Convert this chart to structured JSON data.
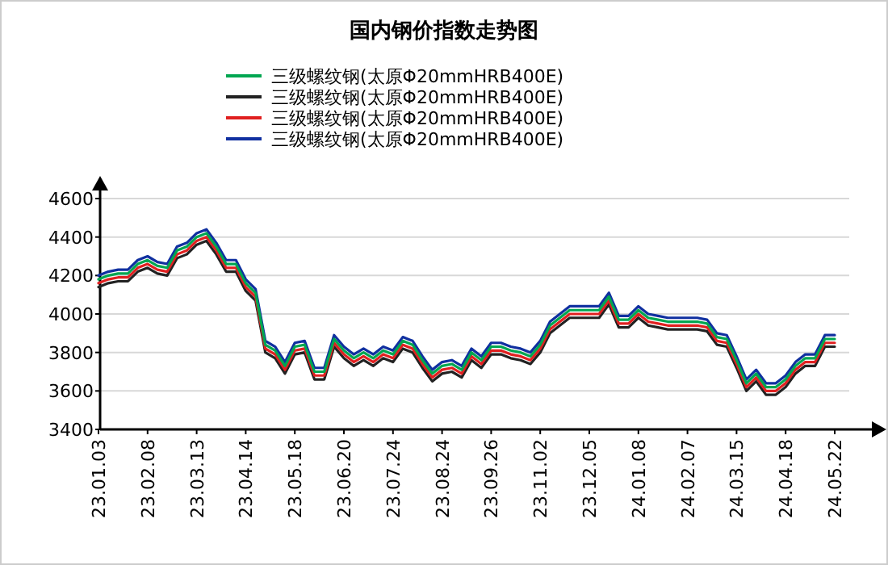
{
  "chart_data": {
    "type": "line",
    "title": "国内钢价指数走势图",
    "categories": [
      "23.01.03",
      null,
      null,
      null,
      null,
      "23.02.08",
      null,
      null,
      null,
      null,
      "23.03.13",
      null,
      null,
      null,
      null,
      "23.04.14",
      null,
      null,
      null,
      null,
      "23.05.18",
      null,
      null,
      null,
      null,
      "23.06.20",
      null,
      null,
      null,
      null,
      "23.07.24",
      null,
      null,
      null,
      null,
      "23.08.24",
      null,
      null,
      null,
      null,
      "23.09.26",
      null,
      null,
      null,
      null,
      "23.11.02",
      null,
      null,
      null,
      null,
      "23.12.05",
      null,
      null,
      null,
      null,
      "24.01.08",
      null,
      null,
      null,
      null,
      "24.02.07",
      null,
      null,
      null,
      null,
      "24.03.15",
      null,
      null,
      null,
      null,
      "24.04.18",
      null,
      null,
      null,
      null,
      "24.05.22"
    ],
    "series": [
      {
        "name": "三级螺纹钢(太原Φ20mmHRB400E)",
        "color": "#00a651",
        "values": [
          4180,
          4200,
          4210,
          4210,
          4260,
          4280,
          4250,
          4240,
          4330,
          4350,
          4400,
          4420,
          4350,
          4260,
          4260,
          4160,
          4110,
          3840,
          3810,
          3730,
          3830,
          3840,
          3700,
          3700,
          3870,
          3810,
          3770,
          3800,
          3770,
          3810,
          3790,
          3860,
          3840,
          3760,
          3690,
          3730,
          3740,
          3710,
          3800,
          3760,
          3830,
          3830,
          3810,
          3800,
          3780,
          3840,
          3940,
          3980,
          4020,
          4020,
          4020,
          4020,
          4090,
          3970,
          3970,
          4020,
          3980,
          3970,
          3960,
          3960,
          3960,
          3960,
          3950,
          3880,
          3870,
          3760,
          3640,
          3690,
          3620,
          3620,
          3660,
          3730,
          3770,
          3770,
          3870,
          3870
        ]
      },
      {
        "name": "三级螺纹钢(太原Φ20mmHRB400E)",
        "color": "#222222",
        "values": [
          4140,
          4160,
          4170,
          4170,
          4220,
          4240,
          4210,
          4200,
          4290,
          4310,
          4360,
          4380,
          4310,
          4220,
          4220,
          4120,
          4070,
          3800,
          3770,
          3690,
          3790,
          3800,
          3660,
          3660,
          3830,
          3770,
          3730,
          3760,
          3730,
          3770,
          3750,
          3820,
          3800,
          3720,
          3650,
          3690,
          3700,
          3670,
          3760,
          3720,
          3790,
          3790,
          3770,
          3760,
          3740,
          3800,
          3900,
          3940,
          3980,
          3980,
          3980,
          3980,
          4050,
          3930,
          3930,
          3980,
          3940,
          3930,
          3920,
          3920,
          3920,
          3920,
          3910,
          3840,
          3830,
          3720,
          3600,
          3650,
          3580,
          3580,
          3620,
          3690,
          3730,
          3730,
          3830,
          3830
        ]
      },
      {
        "name": "三级螺纹钢(太原Φ20mmHRB400E)",
        "color": "#e02020",
        "values": [
          4160,
          4180,
          4190,
          4190,
          4240,
          4260,
          4230,
          4220,
          4310,
          4330,
          4380,
          4400,
          4330,
          4240,
          4240,
          4140,
          4090,
          3820,
          3790,
          3710,
          3810,
          3820,
          3680,
          3680,
          3850,
          3790,
          3750,
          3780,
          3750,
          3790,
          3770,
          3840,
          3820,
          3740,
          3670,
          3710,
          3720,
          3690,
          3780,
          3740,
          3810,
          3810,
          3790,
          3780,
          3760,
          3820,
          3920,
          3960,
          4000,
          4000,
          4000,
          4000,
          4070,
          3950,
          3950,
          4000,
          3960,
          3950,
          3940,
          3940,
          3940,
          3940,
          3930,
          3860,
          3850,
          3740,
          3620,
          3670,
          3600,
          3600,
          3640,
          3710,
          3750,
          3750,
          3850,
          3850
        ]
      },
      {
        "name": "三级螺纹钢(太原Φ20mmHRB400E)",
        "color": "#1030a0",
        "values": [
          4200,
          4220,
          4230,
          4230,
          4280,
          4300,
          4270,
          4260,
          4350,
          4370,
          4420,
          4440,
          4370,
          4280,
          4280,
          4180,
          4130,
          3860,
          3830,
          3750,
          3850,
          3860,
          3720,
          3720,
          3890,
          3830,
          3790,
          3820,
          3790,
          3830,
          3810,
          3880,
          3860,
          3780,
          3710,
          3750,
          3760,
          3730,
          3820,
          3780,
          3850,
          3850,
          3830,
          3820,
          3800,
          3860,
          3960,
          4000,
          4040,
          4040,
          4040,
          4040,
          4110,
          3990,
          3990,
          4040,
          4000,
          3990,
          3980,
          3980,
          3980,
          3980,
          3970,
          3900,
          3890,
          3780,
          3660,
          3710,
          3640,
          3640,
          3680,
          3750,
          3790,
          3790,
          3890,
          3890
        ]
      }
    ],
    "ylim": [
      3400,
      4600
    ],
    "yticks": [
      3400,
      3600,
      3800,
      4000,
      4200,
      4400,
      4600
    ],
    "grid": "y",
    "legend": "top"
  }
}
